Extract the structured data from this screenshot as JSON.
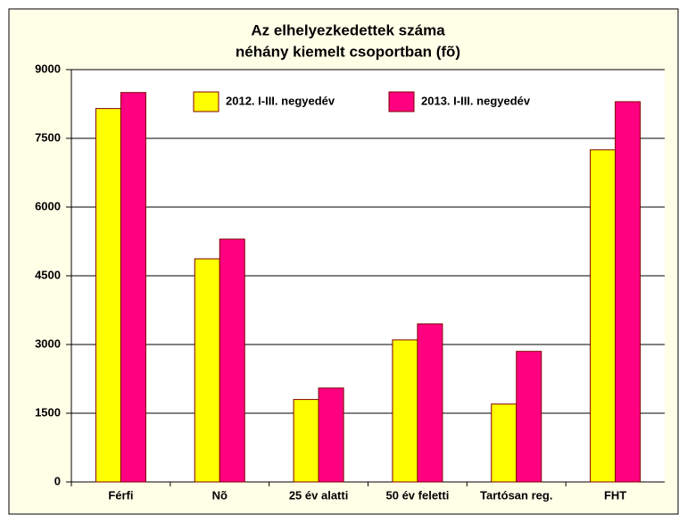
{
  "chart_data": {
    "type": "bar",
    "title": [
      "Az elhelyezkedettek száma",
      "néhány kiemelt csoportban (fõ)"
    ],
    "categories": [
      "Férfi",
      "Nõ",
      "25 év alatti",
      "50 év feletti",
      "Tartósan reg.",
      "FHT"
    ],
    "series": [
      {
        "name": "2012. I-III. negyedév",
        "color": "#ffff00",
        "values": [
          8150,
          4870,
          1800,
          3100,
          1700,
          7250
        ]
      },
      {
        "name": "2013. I-III. negyedév",
        "color": "#ff0080",
        "values": [
          8500,
          5300,
          2050,
          3450,
          2850,
          8300
        ]
      }
    ],
    "ylim": [
      0,
      9000
    ],
    "yticks": [
      0,
      1500,
      3000,
      4500,
      6000,
      7500,
      9000
    ],
    "grid": true,
    "legend": "top"
  }
}
